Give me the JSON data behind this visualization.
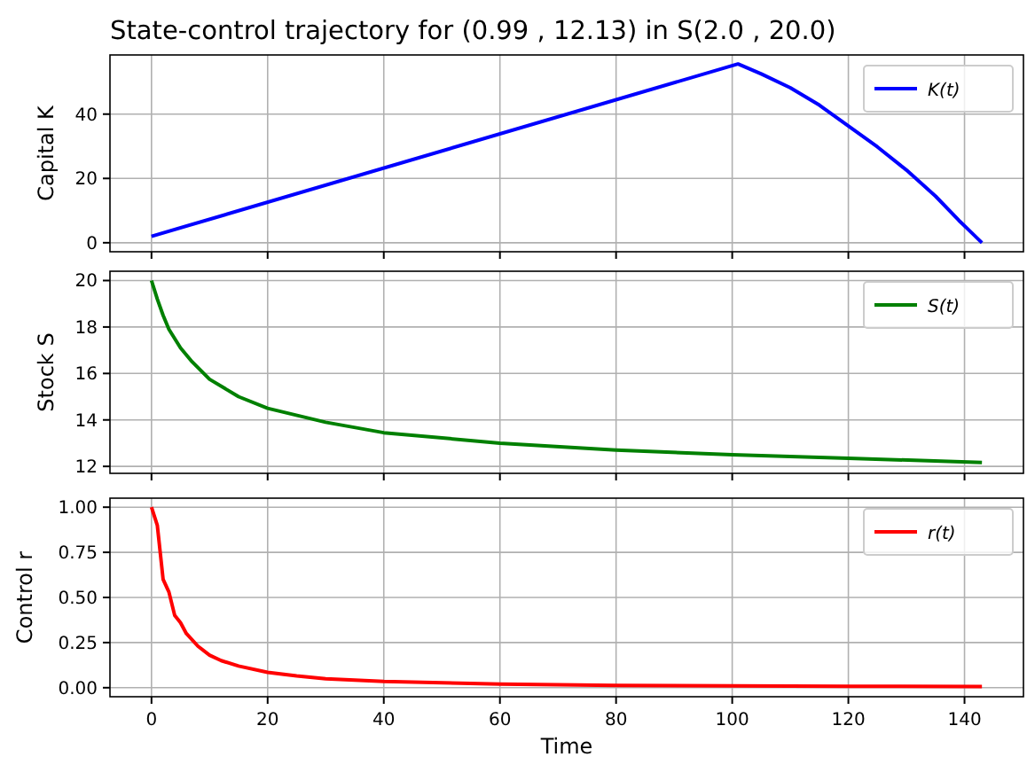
{
  "chart_data": [
    {
      "type": "line",
      "title": "State-control trajectory for (0.99 , 12.13) in S(2.0 , 20.0)",
      "ylabel": "Capital K",
      "x": [
        0,
        101,
        105,
        110,
        115,
        120,
        125,
        130,
        135,
        139,
        141,
        143
      ],
      "series": [
        {
          "name": "K(t)",
          "color": "#0000ff",
          "values": [
            2,
            55.6,
            52.5,
            48.2,
            42.8,
            36.3,
            29.8,
            22.6,
            14.5,
            7,
            3.5,
            0
          ]
        }
      ],
      "xlim": [
        -7.15,
        150.15
      ],
      "xticks": [
        0,
        20,
        40,
        60,
        80,
        100,
        120,
        140
      ],
      "ylim": [
        -2.8,
        58.4
      ],
      "yticks": [
        0,
        20,
        40
      ],
      "grid": true,
      "legend": "top right",
      "tick_labels": "y"
    },
    {
      "type": "line",
      "ylabel": "Stock S",
      "x": [
        0,
        1,
        2,
        3,
        5,
        7,
        10,
        15,
        20,
        30,
        40,
        60,
        80,
        100,
        120,
        143
      ],
      "series": [
        {
          "name": "S(t)",
          "color": "#008000",
          "values": [
            20,
            19.2,
            18.5,
            17.9,
            17.1,
            16.5,
            15.75,
            15,
            14.5,
            13.9,
            13.45,
            13,
            12.7,
            12.5,
            12.35,
            12.17
          ]
        }
      ],
      "xlim": [
        -7.15,
        150.15
      ],
      "xticks": [
        0,
        20,
        40,
        60,
        80,
        100,
        120,
        140
      ],
      "ylim": [
        11.7,
        20.4
      ],
      "yticks": [
        12,
        14,
        16,
        18,
        20
      ],
      "grid": true,
      "legend": "top right",
      "tick_labels": "y"
    },
    {
      "type": "line",
      "xlabel": "Time",
      "ylabel": "Control r",
      "x": [
        0,
        1,
        2,
        3,
        4,
        5,
        6,
        8,
        10,
        12,
        15,
        20,
        25,
        30,
        40,
        60,
        80,
        100,
        120,
        143
      ],
      "series": [
        {
          "name": "r(t)",
          "color": "#ff0000",
          "values": [
            1,
            0.9,
            0.6,
            0.53,
            0.4,
            0.36,
            0.3,
            0.23,
            0.18,
            0.15,
            0.12,
            0.085,
            0.065,
            0.05,
            0.035,
            0.02,
            0.013,
            0.01,
            0.008,
            0.006
          ]
        }
      ],
      "xlim": [
        -7.15,
        150.15
      ],
      "xticks": [
        0,
        20,
        40,
        60,
        80,
        100,
        120,
        140
      ],
      "ylim": [
        -0.05,
        1.05
      ],
      "yticks": [
        {
          "value": 0,
          "label": "0.00"
        },
        {
          "value": 0.25,
          "label": "0.25"
        },
        {
          "value": 0.5,
          "label": "0.50"
        },
        {
          "value": 0.75,
          "label": "0.75"
        },
        {
          "value": 1,
          "label": "1.00"
        }
      ],
      "grid": true,
      "legend": "top right"
    }
  ]
}
